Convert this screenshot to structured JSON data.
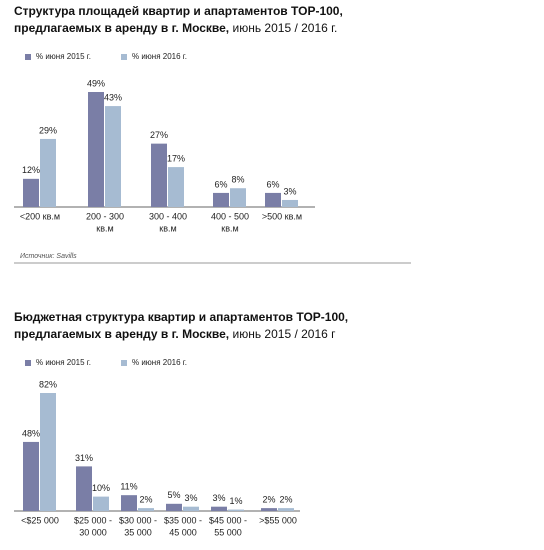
{
  "chart_data": [
    {
      "type": "bar",
      "title_lines": [
        "Структура площадей квартир и апартаментов TOP-100,",
        "предлагаемых в аренду в г. Москве,"
      ],
      "subtitle": "июнь 2015 / 2016 г.",
      "categories": [
        [
          "<200 кв.м"
        ],
        [
          "200 - 300",
          "кв.м"
        ],
        [
          "300 - 400",
          "кв.м"
        ],
        [
          "400 - 500",
          "кв.м"
        ],
        [
          ">500 кв.м"
        ]
      ],
      "series": [
        {
          "name": "% июня 2015 г.",
          "color": "#7a7ea6",
          "values": [
            12,
            49,
            27,
            6,
            6
          ],
          "value_labels": [
            "12%",
            "49%",
            "27%",
            "6%",
            "6%"
          ]
        },
        {
          "name": "% июня 2016 г.",
          "color": "#a6bbd2",
          "values": [
            29,
            43,
            17,
            8,
            3
          ],
          "value_labels": [
            "29%",
            "43%",
            "17%",
            "8%",
            "3%"
          ]
        }
      ],
      "source": "Источник: Savills"
    },
    {
      "type": "bar",
      "title_lines": [
        "Бюджетная структура квартир и апартаментов TOP-100,",
        "предлагаемых в аренду в г. Москве,"
      ],
      "subtitle": "июнь 2015 / 2016 г",
      "categories": [
        [
          "<$25 000"
        ],
        [
          "$25 000 -",
          "30 000"
        ],
        [
          "$30 000 -",
          "35 000"
        ],
        [
          "$35 000 -",
          "45 000"
        ],
        [
          "$45 000 -",
          "55 000"
        ],
        [
          ">$55 000"
        ]
      ],
      "series": [
        {
          "name": "% июня 2015 г.",
          "color": "#7a7ea6",
          "values": [
            48,
            31,
            11,
            5,
            3,
            2
          ],
          "value_labels": [
            "48%",
            "31%",
            "11%",
            "5%",
            "3%",
            "2%"
          ]
        },
        {
          "name": "% июня 2016 г.",
          "color": "#a6bbd2",
          "values": [
            82,
            10,
            2,
            3,
            1,
            2
          ],
          "value_labels": [
            "82%",
            "10%",
            "2%",
            "3%",
            "1%",
            "2%"
          ]
        }
      ]
    }
  ]
}
